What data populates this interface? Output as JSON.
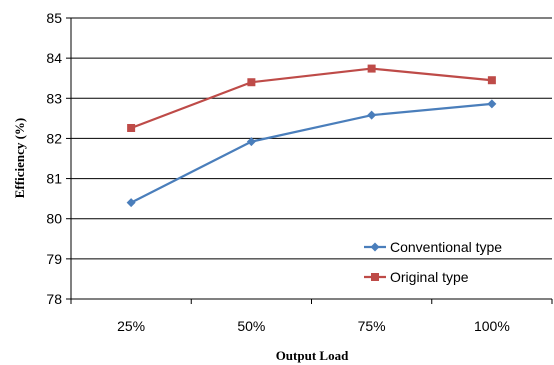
{
  "chart_data": {
    "type": "line",
    "categories": [
      "25%",
      "50%",
      "75%",
      "100%"
    ],
    "series": [
      {
        "name": "Conventional type",
        "color": "#4a7ebb",
        "marker": "diamond",
        "values": [
          80.4,
          81.92,
          82.58,
          82.86
        ]
      },
      {
        "name": "Original type",
        "color": "#be4b48",
        "marker": "square",
        "values": [
          82.26,
          83.4,
          83.74,
          83.45
        ]
      }
    ],
    "title": "",
    "xlabel": "Output Load",
    "ylabel": "Efficiency (%)",
    "ylim": [
      78,
      85
    ],
    "yticks": [
      "78",
      "79",
      "80",
      "81",
      "82",
      "83",
      "84",
      "85"
    ],
    "grid": "horizontal",
    "legend": "bottom-right"
  }
}
